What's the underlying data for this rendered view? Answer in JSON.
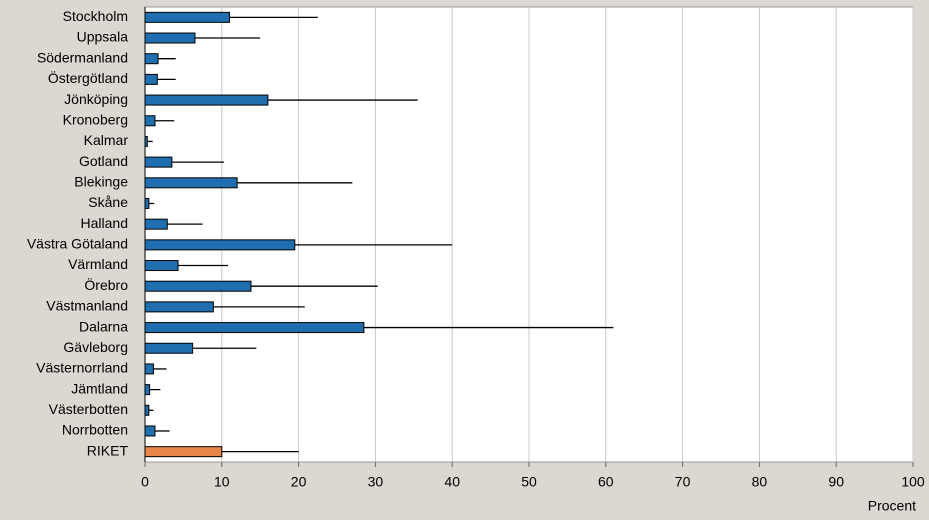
{
  "chart_data": {
    "type": "bar",
    "orientation": "horizontal",
    "x_label": "Procent",
    "categories": [
      "Stockholm",
      "Uppsala",
      "Södermanland",
      "Östergötland",
      "Jönköping",
      "Kronoberg",
      "Kalmar",
      "Gotland",
      "Blekinge",
      "Skåne",
      "Halland",
      "Västra Götaland",
      "Värmland",
      "Örebro",
      "Västmanland",
      "Dalarna",
      "Gävleborg",
      "Västernorrland",
      "Jämtland",
      "Västerbotten",
      "Norrbotten",
      "RIKET"
    ],
    "values": [
      11,
      6.5,
      1.7,
      1.6,
      16,
      1.3,
      0.3,
      3.5,
      12,
      0.5,
      2.9,
      19.5,
      4.3,
      13.8,
      8.9,
      28.5,
      6.2,
      1.1,
      0.6,
      0.5,
      1.3,
      10
    ],
    "errors": [
      11.5,
      8.5,
      2.3,
      2.4,
      19.5,
      2.5,
      0.7,
      6.8,
      15,
      0.7,
      4.6,
      20.5,
      6.5,
      16.5,
      11.9,
      32.5,
      8.3,
      1.7,
      1.4,
      0.6,
      1.9,
      10
    ],
    "colors": [
      "#1f6fb0",
      "#1f6fb0",
      "#1f6fb0",
      "#1f6fb0",
      "#1f6fb0",
      "#1f6fb0",
      "#1f6fb0",
      "#1f6fb0",
      "#1f6fb0",
      "#1f6fb0",
      "#1f6fb0",
      "#1f6fb0",
      "#1f6fb0",
      "#1f6fb0",
      "#1f6fb0",
      "#1f6fb0",
      "#1f6fb0",
      "#1f6fb0",
      "#1f6fb0",
      "#1f6fb0",
      "#1f6fb0",
      "#e8864a"
    ],
    "xlim": [
      0,
      100
    ],
    "xticks": [
      0,
      10,
      20,
      30,
      40,
      50,
      60,
      70,
      80,
      90,
      100
    ],
    "grid": true
  }
}
